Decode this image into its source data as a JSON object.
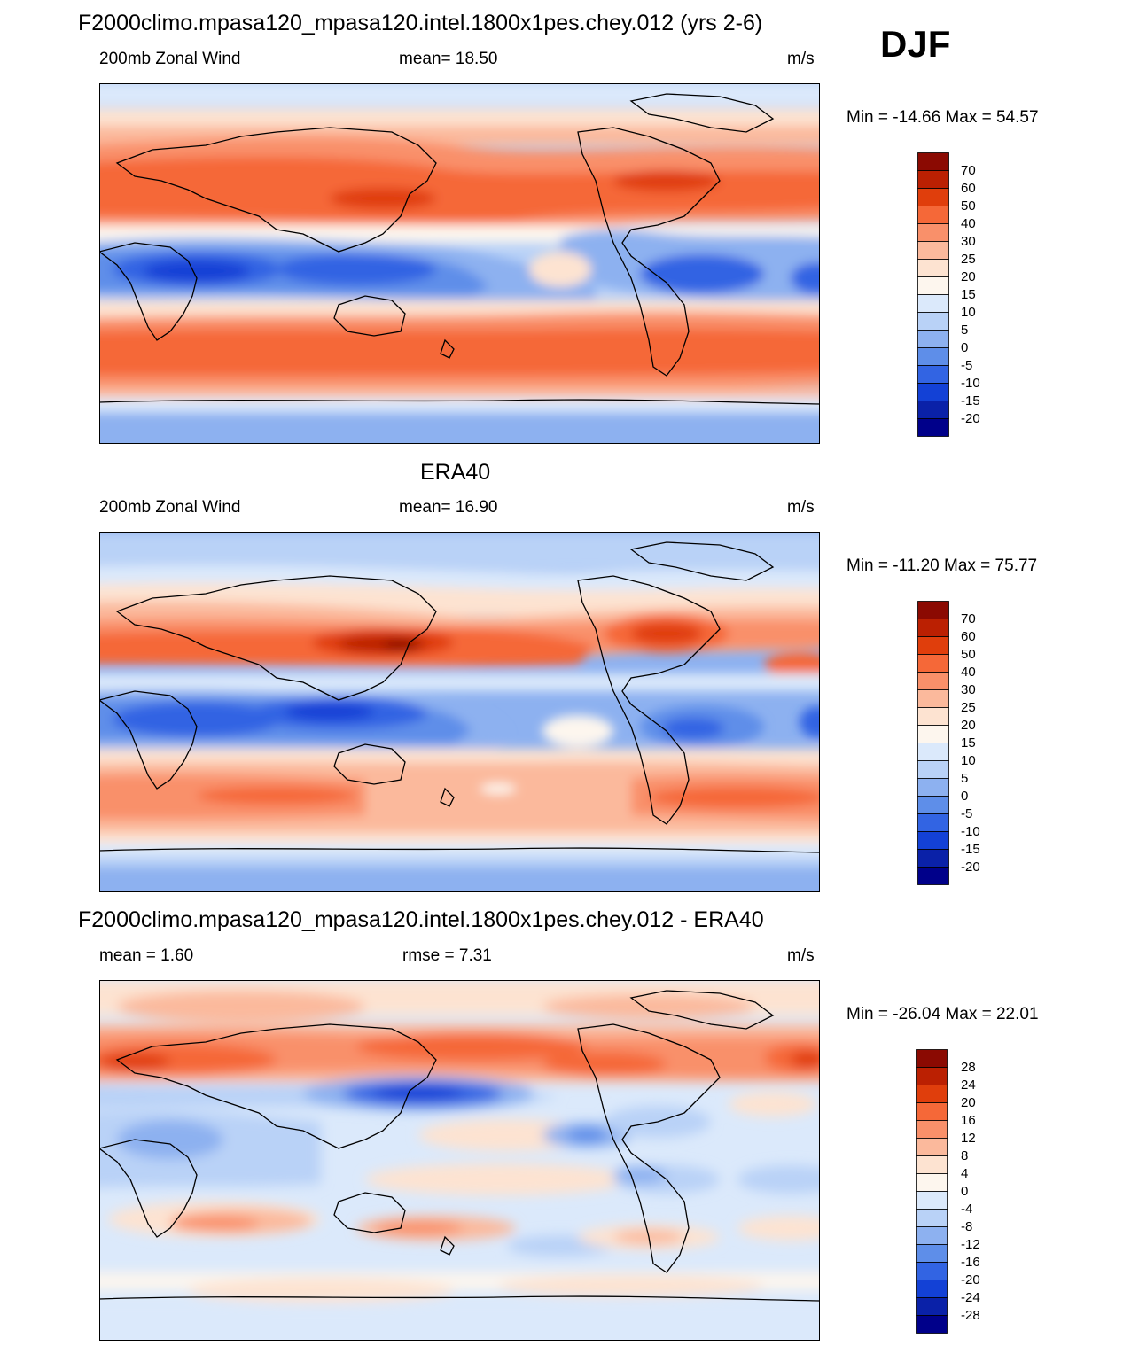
{
  "season": "DJF",
  "panels": [
    {
      "title": "F2000climo.mpasa120_mpasa120.intel.1800x1pes.chey.012 (yrs 2-6)",
      "left_label": "200mb Zonal Wind",
      "center_label": "mean=  18.50",
      "units": "m/s",
      "minmax": "Min = -14.66 Max =  54.57",
      "colorbar_labels": [
        "70",
        "60",
        "50",
        "40",
        "30",
        "25",
        "20",
        "15",
        "10",
        "5",
        "0",
        "-5",
        "-10",
        "-15",
        "-20"
      ]
    },
    {
      "title": "ERA40",
      "left_label": "200mb Zonal Wind",
      "center_label": "mean=  16.90",
      "units": "m/s",
      "minmax": "Min = -11.20 Max =  75.77",
      "colorbar_labels": [
        "70",
        "60",
        "50",
        "40",
        "30",
        "25",
        "20",
        "15",
        "10",
        "5",
        "0",
        "-5",
        "-10",
        "-15",
        "-20"
      ]
    },
    {
      "title": "F2000climo.mpasa120_mpasa120.intel.1800x1pes.chey.012 - ERA40",
      "left_label": "mean =   1.60",
      "center_label": "rmse =   7.31",
      "units": "m/s",
      "minmax": "Min = -26.04 Max =  22.01",
      "colorbar_labels": [
        "28",
        "24",
        "20",
        "16",
        "12",
        "8",
        "4",
        "0",
        "-4",
        "-8",
        "-12",
        "-16",
        "-20",
        "-24",
        "-28"
      ]
    }
  ],
  "colors": {
    "palette16": [
      "#8b0a02",
      "#bb2002",
      "#e03e0c",
      "#f56838",
      "#f9906a",
      "#fbb99c",
      "#fde3d1",
      "#fdf6ee",
      "#dbe9fb",
      "#b9d2f7",
      "#8db1f0",
      "#5e8ee9",
      "#3264e3",
      "#1341d6",
      "#0a21a8",
      "#00008a"
    ]
  }
}
